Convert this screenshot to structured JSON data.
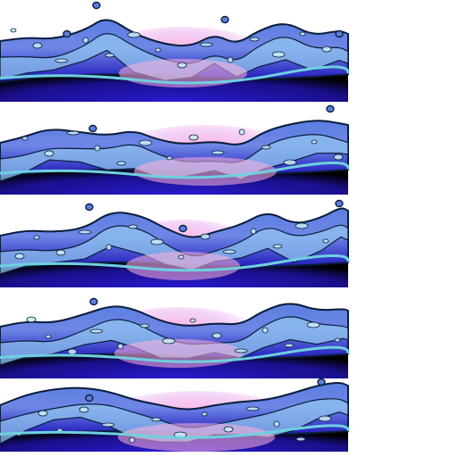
{
  "sprite_sheet": {
    "kind": "water-wave animation frames",
    "frame_count": 5,
    "frames": [
      {
        "id": "frame-1",
        "crest_variant": "a"
      },
      {
        "id": "frame-2",
        "crest_variant": "b"
      },
      {
        "id": "frame-3",
        "crest_variant": "c"
      },
      {
        "id": "frame-4",
        "crest_variant": "d"
      },
      {
        "id": "frame-5",
        "crest_variant": "e"
      }
    ],
    "colors": {
      "deep_water": "#1b12b8",
      "mid_water": "#5a7fe0",
      "light_water": "#8fc4ef",
      "foam": "#c9eaf7",
      "glow": "#ffb3dd",
      "outline": "#0b1d3c",
      "shadow": "#000000"
    }
  }
}
